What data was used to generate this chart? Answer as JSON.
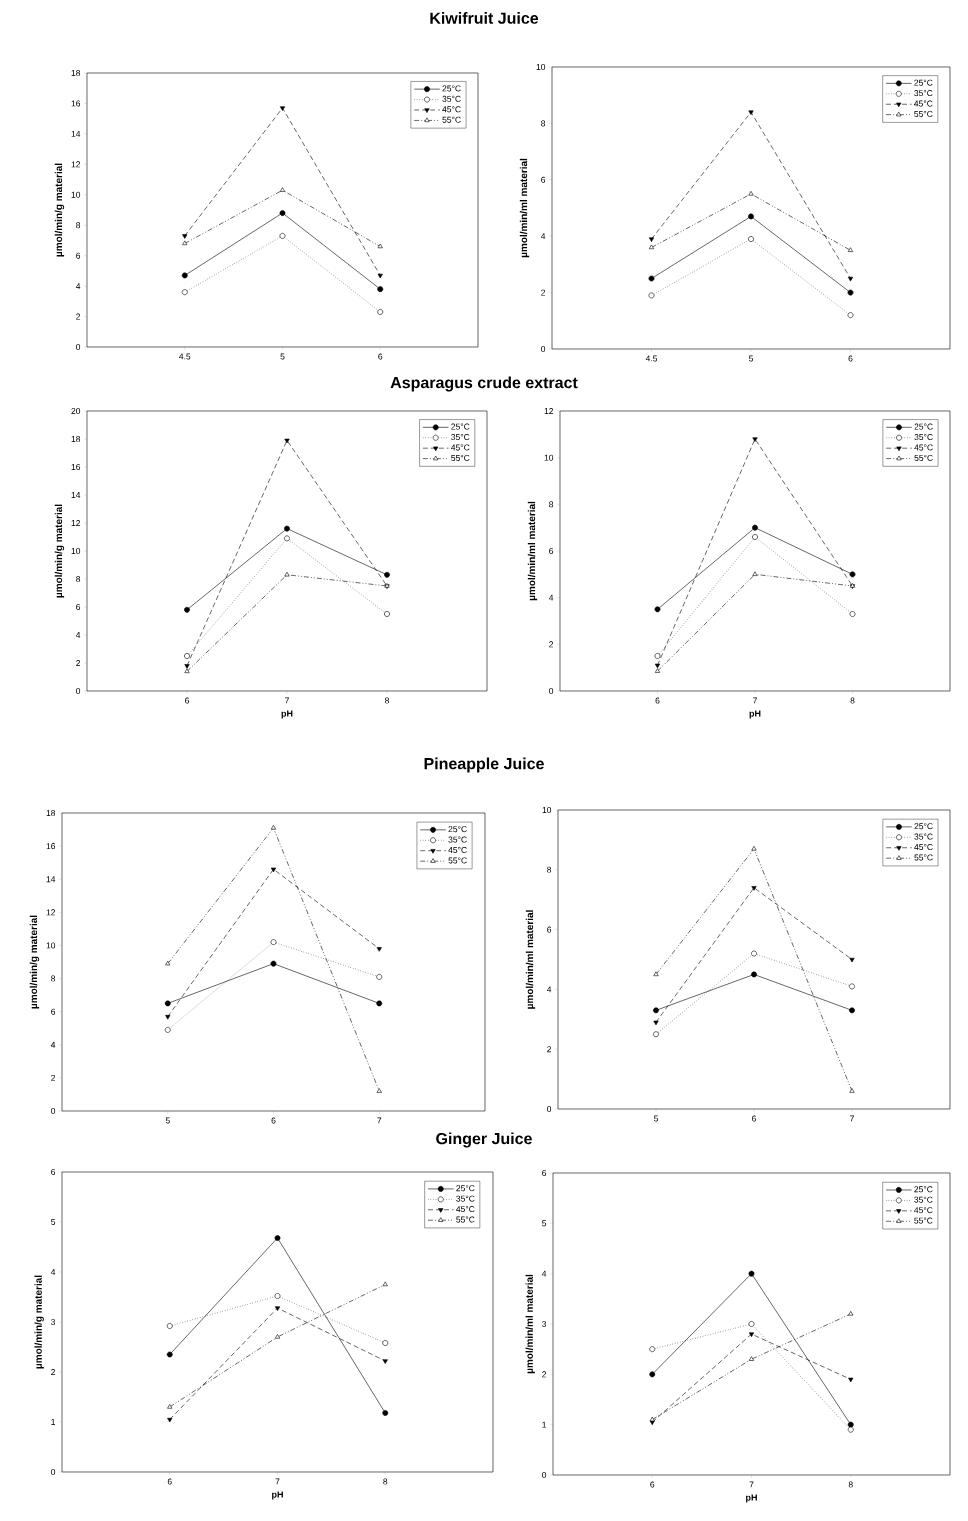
{
  "chart_data": [
    {
      "type": "line",
      "title": "Kiwifruit Juice",
      "categories": [
        "4.5",
        "5",
        "6"
      ],
      "ylabel": "µmol/min/g material",
      "ylim": [
        0,
        18
      ],
      "yticks": [
        0,
        2,
        4,
        6,
        8,
        10,
        12,
        14,
        16,
        18
      ],
      "legend": "top right",
      "series": [
        {
          "name": "25°C",
          "color": "#000000",
          "marker": "circle",
          "line_style": "solid",
          "values": [
            4.7,
            8.8,
            3.8
          ]
        },
        {
          "name": "35°C",
          "color": "#000000",
          "marker": "circle-open",
          "line_style": "dotted",
          "values": [
            3.6,
            7.3,
            2.3
          ]
        },
        {
          "name": "45°C",
          "color": "#000000",
          "marker": "triangle-down",
          "line_style": "dashed",
          "values": [
            7.3,
            15.7,
            4.7
          ]
        },
        {
          "name": "55°C",
          "color": "#000000",
          "marker": "triangle-open",
          "line_style": "dash-dot-dot",
          "values": [
            6.8,
            10.3,
            6.6
          ]
        }
      ]
    },
    {
      "type": "line",
      "categories": [
        "4.5",
        "5",
        "6"
      ],
      "ylabel": "µmol/min/ml material",
      "ylim": [
        0,
        10
      ],
      "yticks": [
        0,
        2,
        4,
        6,
        8,
        10
      ],
      "legend": "top right",
      "series": [
        {
          "name": "25°C",
          "color": "#000000",
          "marker": "circle",
          "line_style": "solid",
          "values": [
            2.5,
            4.7,
            2.0
          ]
        },
        {
          "name": "35°C",
          "color": "#000000",
          "marker": "circle-open",
          "line_style": "dotted",
          "values": [
            1.9,
            3.9,
            1.2
          ]
        },
        {
          "name": "45°C",
          "color": "#000000",
          "marker": "triangle-down",
          "line_style": "dashed",
          "values": [
            3.9,
            8.4,
            2.5
          ]
        },
        {
          "name": "55°C",
          "color": "#000000",
          "marker": "triangle-open",
          "line_style": "dash-dot-dot",
          "values": [
            3.6,
            5.5,
            3.5
          ]
        }
      ]
    },
    {
      "type": "line",
      "title": "Asparagus crude extract",
      "categories": [
        "6",
        "7",
        "8"
      ],
      "xlabel": "pH",
      "ylabel": "µmol/min/g material",
      "ylim": [
        0,
        20
      ],
      "yticks": [
        0,
        2,
        4,
        6,
        8,
        10,
        12,
        14,
        16,
        18,
        20
      ],
      "legend": "top right",
      "series": [
        {
          "name": "25°C",
          "color": "#000000",
          "marker": "circle",
          "line_style": "solid",
          "values": [
            5.8,
            11.6,
            8.3
          ]
        },
        {
          "name": "35°C",
          "color": "#000000",
          "marker": "circle-open",
          "line_style": "dotted",
          "values": [
            2.5,
            10.9,
            5.5
          ]
        },
        {
          "name": "45°C",
          "color": "#000000",
          "marker": "triangle-down",
          "line_style": "dashed",
          "values": [
            1.8,
            17.9,
            7.5
          ]
        },
        {
          "name": "55°C",
          "color": "#000000",
          "marker": "triangle-open",
          "line_style": "dash-dot-dot",
          "values": [
            1.4,
            8.3,
            7.5
          ]
        }
      ]
    },
    {
      "type": "line",
      "categories": [
        "6",
        "7",
        "8"
      ],
      "xlabel": "pH",
      "ylabel": "µmol/min/ml material",
      "ylim": [
        0,
        12
      ],
      "yticks": [
        0,
        2,
        4,
        6,
        8,
        10,
        12
      ],
      "legend": "top right",
      "series": [
        {
          "name": "25°C",
          "color": "#000000",
          "marker": "circle",
          "line_style": "solid",
          "values": [
            3.5,
            7.0,
            5.0
          ]
        },
        {
          "name": "35°C",
          "color": "#000000",
          "marker": "circle-open",
          "line_style": "dotted",
          "values": [
            1.5,
            6.6,
            3.3
          ]
        },
        {
          "name": "45°C",
          "color": "#000000",
          "marker": "triangle-down",
          "line_style": "dashed",
          "values": [
            1.1,
            10.8,
            4.5
          ]
        },
        {
          "name": "55°C",
          "color": "#000000",
          "marker": "triangle-open",
          "line_style": "dash-dot-dot",
          "values": [
            0.85,
            5.0,
            4.5
          ]
        }
      ]
    },
    {
      "type": "line",
      "title": "Pineapple Juice",
      "categories": [
        "5",
        "6",
        "7"
      ],
      "ylabel": "µmol/min/g material",
      "ylim": [
        0,
        18
      ],
      "yticks": [
        0,
        2,
        4,
        6,
        8,
        10,
        12,
        14,
        16,
        18
      ],
      "legend": "top right",
      "series": [
        {
          "name": "25°C",
          "color": "#000000",
          "marker": "circle",
          "line_style": "solid",
          "values": [
            6.5,
            8.9,
            6.5
          ]
        },
        {
          "name": "35°C",
          "color": "#000000",
          "marker": "circle-open",
          "line_style": "dotted",
          "values": [
            4.9,
            10.2,
            8.1
          ]
        },
        {
          "name": "45°C",
          "color": "#000000",
          "marker": "triangle-down",
          "line_style": "dashed",
          "values": [
            5.7,
            14.6,
            9.8
          ]
        },
        {
          "name": "55°C",
          "color": "#000000",
          "marker": "triangle-open",
          "line_style": "dash-dot-dot",
          "values": [
            8.9,
            17.1,
            1.2
          ]
        }
      ]
    },
    {
      "type": "line",
      "categories": [
        "5",
        "6",
        "7"
      ],
      "ylabel": "µmol/min/ml material",
      "ylim": [
        0,
        10
      ],
      "yticks": [
        0,
        2,
        4,
        6,
        8,
        10
      ],
      "legend": "top right",
      "series": [
        {
          "name": "25°C",
          "color": "#000000",
          "marker": "circle",
          "line_style": "solid",
          "values": [
            3.3,
            4.5,
            3.3
          ]
        },
        {
          "name": "35°C",
          "color": "#000000",
          "marker": "circle-open",
          "line_style": "dotted",
          "values": [
            2.5,
            5.2,
            4.1
          ]
        },
        {
          "name": "45°C",
          "color": "#000000",
          "marker": "triangle-down",
          "line_style": "dashed",
          "values": [
            2.9,
            7.4,
            5.0
          ]
        },
        {
          "name": "55°C",
          "color": "#000000",
          "marker": "triangle-open",
          "line_style": "dash-dot-dot",
          "values": [
            4.5,
            8.7,
            0.6
          ]
        }
      ]
    },
    {
      "type": "line",
      "title": "Ginger Juice",
      "categories": [
        "6",
        "7",
        "8"
      ],
      "xlabel": "pH",
      "ylabel": "µmol/min/g material",
      "ylim": [
        0,
        6
      ],
      "yticks": [
        0,
        1,
        2,
        3,
        4,
        5,
        6
      ],
      "legend": "top right",
      "series": [
        {
          "name": "25°C",
          "color": "#000000",
          "marker": "circle",
          "line_style": "solid",
          "values": [
            2.35,
            4.68,
            1.18
          ]
        },
        {
          "name": "35°C",
          "color": "#000000",
          "marker": "circle-open",
          "line_style": "dotted",
          "values": [
            2.92,
            3.52,
            2.58
          ]
        },
        {
          "name": "45°C",
          "color": "#000000",
          "marker": "triangle-down",
          "line_style": "dashed",
          "values": [
            1.05,
            3.28,
            2.22
          ]
        },
        {
          "name": "55°C",
          "color": "#000000",
          "marker": "triangle-open",
          "line_style": "dash-dot-dot",
          "values": [
            1.3,
            2.7,
            3.75
          ]
        }
      ]
    },
    {
      "type": "line",
      "categories": [
        "6",
        "7",
        "8"
      ],
      "xlabel": "pH",
      "ylabel": "µmol/min/ml material",
      "ylim": [
        0,
        6
      ],
      "yticks": [
        0,
        1,
        2,
        3,
        4,
        5,
        6
      ],
      "legend": "top right",
      "series": [
        {
          "name": "25°C",
          "color": "#000000",
          "marker": "circle",
          "line_style": "solid",
          "values": [
            2.0,
            4.0,
            1.0
          ]
        },
        {
          "name": "35°C",
          "color": "#000000",
          "marker": "circle-open",
          "line_style": "dotted",
          "values": [
            2.5,
            3.0,
            0.9
          ]
        },
        {
          "name": "45°C",
          "color": "#000000",
          "marker": "triangle-down",
          "line_style": "dashed",
          "values": [
            1.05,
            2.8,
            1.9
          ]
        },
        {
          "name": "55°C",
          "color": "#000000",
          "marker": "triangle-open",
          "line_style": "dash-dot-dot",
          "values": [
            1.1,
            2.3,
            3.2
          ]
        }
      ]
    }
  ]
}
